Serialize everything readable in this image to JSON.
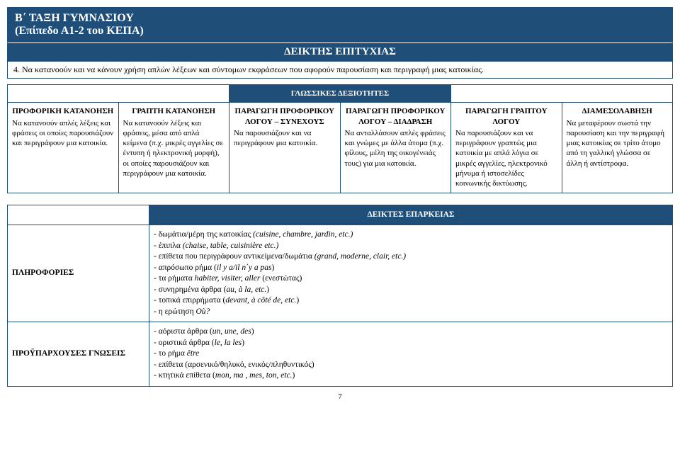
{
  "header": {
    "line1": "Β΄ ΤΑΞΗ ΓΥΜΝΑΣΙΟΥ",
    "line2": "(Επίπεδο Α1-2 του ΚΕΠΑ)",
    "success_indicator": "ΔΕΙΚΤΗΣ ΕΠΙΤΥΧΙΑΣ",
    "description": "4. Να κατανοούν και να κάνουν χρήση απλών λέξεων και σύντομων εκφράσεων που αφορούν παρουσίαση και περιγραφή μιας κατοικίας."
  },
  "section1": {
    "title": "ΓΛΩΣΣΙΚΕΣ ΔΕΞΙΟΤΗΤΕΣ",
    "cols": [
      {
        "title": "ΠΡΟΦΟΡΙΚΗ ΚΑΤΑΝΟΗΣΗ",
        "body": "Να κατανοούν απλές λέξεις και φράσεις οι οποίες παρουσιάζουν και περιγράφουν μια κατοικία."
      },
      {
        "title": "ΓΡΑΠΤΗ ΚΑΤΑΝΟΗΣΗ",
        "body": "Να κατανοούν λέξεις και φράσεις, μέσα από απλά κείμενα (π.χ. μικρές αγγελίες σε έντυπη ή ηλεκτρονική μορφή), οι οποίες παρουσιάζουν και περιγράφουν μια κατοικία."
      },
      {
        "title": "ΠΑΡΑΓΩΓΗ ΠΡΟΦΟΡΙΚΟΥ ΛΟΓΟΥ – ΣΥΝΕΧΟΥΣ",
        "body": "Να παρουσιάζουν και να περιγράφουν μια κατοικία."
      },
      {
        "title": "ΠΑΡΑΓΩΓΗ ΠΡΟΦΟΡΙΚΟΥ ΛΟΓΟΥ – ΔΙΑΔΡΑΣΗ",
        "body": "Να ανταλλάσουν απλές φράσεις και γνώμες με άλλα άτομα (π.χ. φίλους, μέλη της οικογένειάς τους) για μια κατοικία."
      },
      {
        "title": "ΠΑΡΑΓΩΓΗ ΓΡΑΠΤΟΥ ΛΟΓΟΥ",
        "body": "Να παρουσιάζουν και να περιγράφουν γραπτώς μια κατοικία με απλά λόγια σε μικρές αγγελίες, ηλεκτρονικό μήνυμα ή ιστοσελίδες κοινωνικής δικτύωσης."
      },
      {
        "title": "ΔΙΑΜΕΣΟΛΑΒΗΣΗ",
        "body": "Να μεταφέρουν σωστά την παρουσίαση και την περιγραφή μιας κατοικίας σε τρίτο άτομο από τη γαλλική γλώσσα σε άλλη ή αντίστροφα."
      }
    ]
  },
  "section2": {
    "title": "ΔΕΙΚΤΕΣ ΕΠΑΡΚΕΙΑΣ",
    "rows": [
      {
        "label": "ΠΛΗΡΟΦΟΡΙΕΣ",
        "items": [
          "δωμάτια/μέρη της κατοικίας <em>(cuisine, chambre, jardin, etc.)</em>",
          "έπιπλα <em>(chaise, table, cuisinière etc.)</em>",
          "επίθετα που περιγράφουν αντικείμενα/δωμάτια <em>(grand, moderne, clair, etc.)</em>",
          "απρόσωπο ρήμα (<em>il y a/il n΄y a pas</em>)",
          "τα ρήματα <em>habiter, visiter, aller</em> (ενεστώτας)",
          "συνηρημένα άρθρα (<em>au, à la, etc.</em>)",
          "τοπικά επιρρήματα (<em>devant, à côté de, etc.</em>)",
          "η ερώτηση <em>Où?</em>"
        ]
      },
      {
        "label": "ΠΡΟΫΠΑΡΧΟΥΣΕΣ ΓΝΩΣΕΙΣ",
        "items": [
          "αόριστα άρθρα (<em>un, une, des</em>)",
          "οριστικά άρθρα (<em>le, la les</em>)",
          "το ρήμα <em>être</em>",
          "επίθετα (αρσενικό/θηλυκό, ενικός/πληθυντικός)",
          "κτητικά επίθετα (<em>mon, ma , mes, ton, etc.</em>)"
        ]
      }
    ]
  },
  "page_number": "7"
}
